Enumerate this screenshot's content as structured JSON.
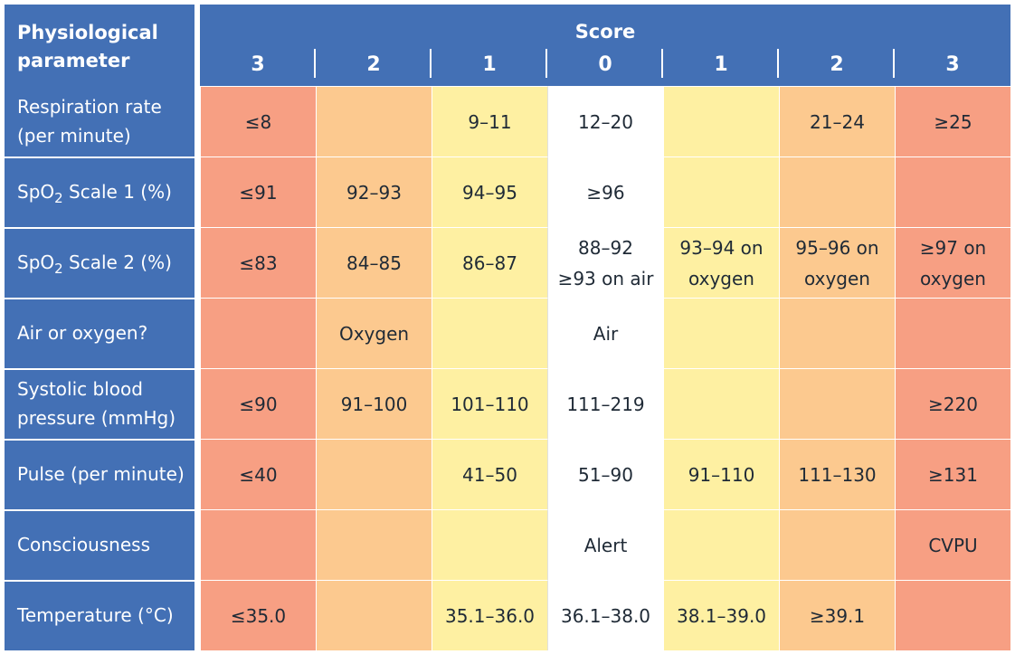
{
  "header": {
    "param_label": "Physiological parameter",
    "param_label_line1": "Physiological",
    "param_label_line2": "parameter",
    "score_label": "Score",
    "score_columns": [
      "3",
      "2",
      "1",
      "0",
      "1",
      "2",
      "3"
    ]
  },
  "colors": {
    "header_blue": "#4370b5",
    "score_3": "#f79f83",
    "score_2": "#fcc98f",
    "score_1": "#fef0a2",
    "score_0": "#ffffff"
  },
  "rows": [
    {
      "param_line1": "Respiration rate",
      "param_line2": "(per minute)",
      "cells": [
        "≤8",
        "",
        "9–11",
        "12–20",
        "",
        "21–24",
        "≥25"
      ]
    },
    {
      "param_prefix": "SpO",
      "param_sub": "2",
      "param_suffix": " Scale 1 (%)",
      "cells": [
        "≤91",
        "92–93",
        "94–95",
        "≥96",
        "",
        "",
        ""
      ]
    },
    {
      "param_prefix": "SpO",
      "param_sub": "2",
      "param_suffix": " Scale 2 (%)",
      "cells": [
        "≤83",
        "84–85",
        "86–87",
        "88–92\n≥93 on air",
        "93–94 on\noxygen",
        "95–96 on\noxygen",
        "≥97 on\noxygen"
      ]
    },
    {
      "param_line1": "Air or oxygen?",
      "cells": [
        "",
        "Oxygen",
        "",
        "Air",
        "",
        "",
        ""
      ]
    },
    {
      "param_line1": "Systolic blood",
      "param_line2": "pressure (mmHg)",
      "cells": [
        "≤90",
        "91–100",
        "101–110",
        "111–219",
        "",
        "",
        "≥220"
      ]
    },
    {
      "param_line1": "Pulse (per minute)",
      "cells": [
        "≤40",
        "",
        "41–50",
        "51–90",
        "91–110",
        "111–130",
        "≥131"
      ]
    },
    {
      "param_line1": "Consciousness",
      "cells": [
        "",
        "",
        "",
        "Alert",
        "",
        "",
        "CVPU"
      ]
    },
    {
      "param_line1": "Temperature (°C)",
      "cells": [
        "≤35.0",
        "",
        "35.1–36.0",
        "36.1–38.0",
        "38.1–39.0",
        "≥39.1",
        ""
      ]
    }
  ]
}
